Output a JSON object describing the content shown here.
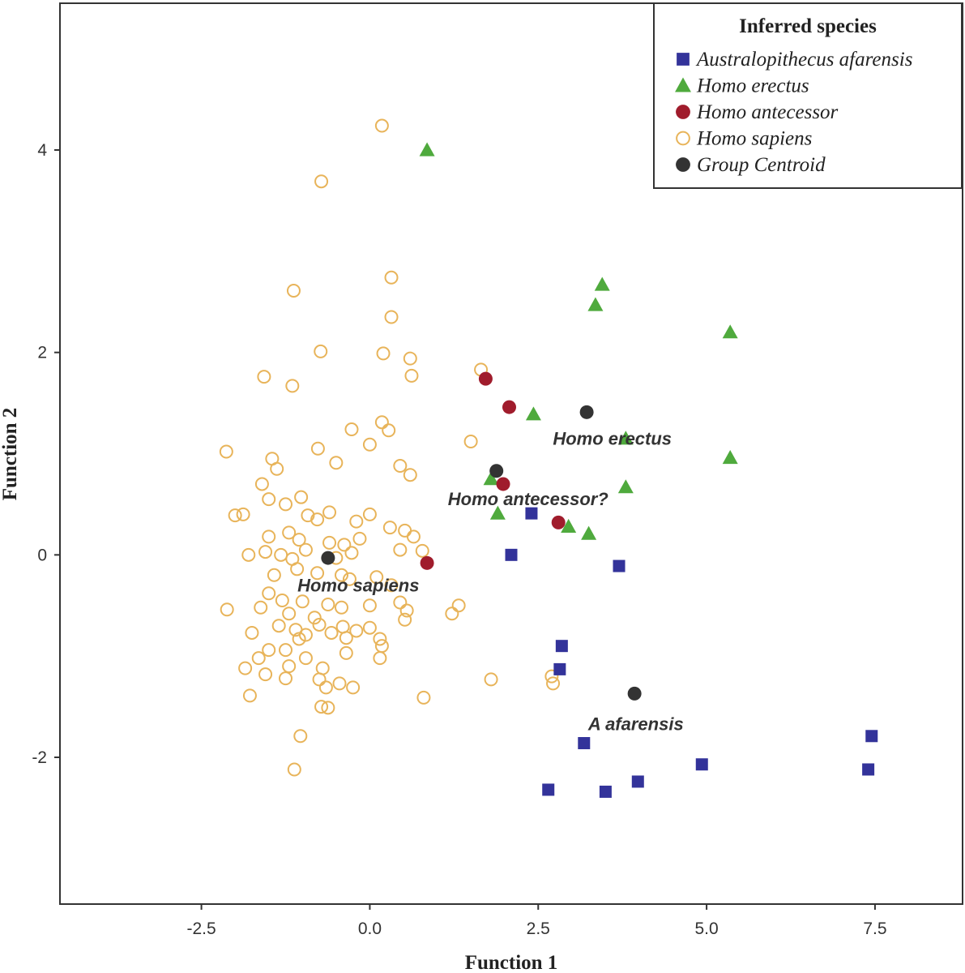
{
  "chart_data": {
    "type": "scatter",
    "title": "",
    "xlabel": "Function 1",
    "ylabel": "Function 2",
    "xlim": [
      -4.6,
      8.8
    ],
    "ylim": [
      -3.45,
      5.45
    ],
    "grid": false,
    "xticks": [
      -2.5,
      0.0,
      2.5,
      5.0,
      7.5
    ],
    "xtick_labels": [
      "-2.5",
      "0.0",
      "2.5",
      "5.0",
      "7.5"
    ],
    "yticks": [
      4,
      2,
      0,
      -2
    ],
    "ytick_labels": [
      "4",
      "2",
      "0",
      "-2"
    ],
    "legend": {
      "title": "Inferred species",
      "position": "top-right",
      "entries": [
        {
          "label": "Australopithecus afarensis",
          "marker": "square",
          "color": "#33339a"
        },
        {
          "label": "Homo erectus",
          "marker": "triangle",
          "color": "#4faa3d"
        },
        {
          "label": "Homo antecessor",
          "marker": "circle-filled",
          "color": "#a01c2c"
        },
        {
          "label": "Homo sapiens",
          "marker": "circle-open",
          "color": "#e8b45a"
        },
        {
          "label": "Group Centroid",
          "marker": "circle-filled",
          "color": "#333333"
        }
      ]
    },
    "series": [
      {
        "name": "Australopithecus afarensis",
        "marker": "square",
        "color": "#33339a",
        "points": [
          [
            2.4,
            0.41
          ],
          [
            2.1,
            0.0
          ],
          [
            3.7,
            -0.11
          ],
          [
            2.85,
            -0.9
          ],
          [
            2.82,
            -1.13
          ],
          [
            3.18,
            -1.86
          ],
          [
            2.65,
            -2.32
          ],
          [
            3.5,
            -2.34
          ],
          [
            3.98,
            -2.24
          ],
          [
            4.93,
            -2.07
          ],
          [
            7.45,
            -1.79
          ],
          [
            7.4,
            -2.12
          ]
        ]
      },
      {
        "name": "Homo erectus",
        "marker": "triangle",
        "color": "#4faa3d",
        "points": [
          [
            0.85,
            4.0
          ],
          [
            3.45,
            2.67
          ],
          [
            3.35,
            2.47
          ],
          [
            5.35,
            2.2
          ],
          [
            2.43,
            1.39
          ],
          [
            3.8,
            1.15
          ],
          [
            5.35,
            0.96
          ],
          [
            1.8,
            0.75
          ],
          [
            3.8,
            0.67
          ],
          [
            1.9,
            0.41
          ],
          [
            2.95,
            0.28
          ],
          [
            3.25,
            0.21
          ]
        ]
      },
      {
        "name": "Homo antecessor",
        "marker": "circle-filled",
        "color": "#a01c2c",
        "points": [
          [
            1.72,
            1.74
          ],
          [
            2.07,
            1.46
          ],
          [
            1.98,
            0.7
          ],
          [
            2.8,
            0.32
          ],
          [
            0.85,
            -0.08
          ]
        ]
      },
      {
        "name": "Homo sapiens",
        "marker": "circle-open",
        "color": "#e8b45a",
        "points": [
          [
            0.18,
            4.24
          ],
          [
            -0.72,
            3.69
          ],
          [
            0.32,
            2.74
          ],
          [
            -1.13,
            2.61
          ],
          [
            0.32,
            2.35
          ],
          [
            -0.73,
            2.01
          ],
          [
            0.2,
            1.99
          ],
          [
            0.6,
            1.94
          ],
          [
            0.62,
            1.77
          ],
          [
            -1.57,
            1.76
          ],
          [
            -1.15,
            1.67
          ],
          [
            1.65,
            1.83
          ],
          [
            0.18,
            1.31
          ],
          [
            0.28,
            1.23
          ],
          [
            -0.27,
            1.24
          ],
          [
            1.5,
            1.12
          ],
          [
            0.0,
            1.09
          ],
          [
            -2.13,
            1.02
          ],
          [
            -0.77,
            1.05
          ],
          [
            0.45,
            0.88
          ],
          [
            -0.5,
            0.91
          ],
          [
            -1.45,
            0.95
          ],
          [
            0.6,
            0.79
          ],
          [
            -1.38,
            0.85
          ],
          [
            -1.6,
            0.7
          ],
          [
            -1.02,
            0.57
          ],
          [
            -1.5,
            0.55
          ],
          [
            -1.25,
            0.5
          ],
          [
            -1.88,
            0.4
          ],
          [
            -2.0,
            0.39
          ],
          [
            -0.92,
            0.39
          ],
          [
            -0.78,
            0.35
          ],
          [
            -0.6,
            0.42
          ],
          [
            -0.2,
            0.33
          ],
          [
            0.0,
            0.4
          ],
          [
            0.3,
            0.27
          ],
          [
            0.52,
            0.24
          ],
          [
            0.65,
            0.18
          ],
          [
            -1.5,
            0.18
          ],
          [
            -1.2,
            0.22
          ],
          [
            -1.05,
            0.15
          ],
          [
            -0.6,
            0.12
          ],
          [
            -0.38,
            0.1
          ],
          [
            -0.15,
            0.16
          ],
          [
            0.45,
            0.05
          ],
          [
            0.78,
            0.04
          ],
          [
            -1.8,
            0.0
          ],
          [
            -1.55,
            0.03
          ],
          [
            -1.32,
            0.0
          ],
          [
            -1.15,
            -0.04
          ],
          [
            -0.95,
            0.05
          ],
          [
            -0.5,
            -0.03
          ],
          [
            -0.27,
            0.02
          ],
          [
            -1.42,
            -0.2
          ],
          [
            -1.08,
            -0.14
          ],
          [
            -0.78,
            -0.18
          ],
          [
            -0.42,
            -0.2
          ],
          [
            -0.3,
            -0.24
          ],
          [
            0.1,
            -0.22
          ],
          [
            0.32,
            -0.3
          ],
          [
            -1.5,
            -0.38
          ],
          [
            -1.3,
            -0.45
          ],
          [
            -1.0,
            -0.46
          ],
          [
            -0.62,
            -0.49
          ],
          [
            -0.42,
            -0.52
          ],
          [
            0.0,
            -0.5
          ],
          [
            0.45,
            -0.47
          ],
          [
            0.55,
            -0.55
          ],
          [
            -2.12,
            -0.54
          ],
          [
            -1.62,
            -0.52
          ],
          [
            -1.2,
            -0.58
          ],
          [
            -0.82,
            -0.62
          ],
          [
            1.32,
            -0.5
          ],
          [
            1.22,
            -0.58
          ],
          [
            0.52,
            -0.64
          ],
          [
            -1.35,
            -0.7
          ],
          [
            -1.1,
            -0.74
          ],
          [
            -0.95,
            -0.79
          ],
          [
            -0.75,
            -0.69
          ],
          [
            -0.4,
            -0.71
          ],
          [
            -0.2,
            -0.75
          ],
          [
            0.0,
            -0.72
          ],
          [
            0.15,
            -0.83
          ],
          [
            -1.75,
            -0.77
          ],
          [
            -1.05,
            -0.83
          ],
          [
            -0.57,
            -0.77
          ],
          [
            -0.35,
            -0.82
          ],
          [
            -1.5,
            -0.94
          ],
          [
            -1.25,
            -0.94
          ],
          [
            -1.65,
            -1.02
          ],
          [
            -0.95,
            -1.02
          ],
          [
            -0.35,
            -0.97
          ],
          [
            0.18,
            -0.9
          ],
          [
            0.15,
            -1.02
          ],
          [
            -1.85,
            -1.12
          ],
          [
            -1.2,
            -1.1
          ],
          [
            -0.7,
            -1.12
          ],
          [
            -1.55,
            -1.18
          ],
          [
            -1.25,
            -1.22
          ],
          [
            -0.75,
            -1.23
          ],
          [
            -0.45,
            -1.27
          ],
          [
            -0.25,
            -1.31
          ],
          [
            -0.65,
            -1.31
          ],
          [
            2.7,
            -1.2
          ],
          [
            2.72,
            -1.27
          ],
          [
            1.8,
            -1.23
          ],
          [
            0.8,
            -1.41
          ],
          [
            -1.78,
            -1.39
          ],
          [
            -0.72,
            -1.5
          ],
          [
            -0.62,
            -1.51
          ],
          [
            -1.03,
            -1.79
          ],
          [
            -1.12,
            -2.12
          ]
        ]
      },
      {
        "name": "Group Centroid",
        "marker": "circle-filled",
        "color": "#333333",
        "points": [
          [
            -0.62,
            -0.03
          ],
          [
            1.88,
            0.83
          ],
          [
            3.22,
            1.41
          ],
          [
            3.93,
            -1.37
          ]
        ]
      }
    ],
    "annotations": [
      {
        "text": "Homo erectus",
        "x": 3.6,
        "y": 1.09
      },
      {
        "text": "Homo antecessor?",
        "x": 2.35,
        "y": 0.49
      },
      {
        "text": "Homo sapiens",
        "x": -0.17,
        "y": -0.36
      },
      {
        "text": "A afarensis",
        "x": 3.95,
        "y": -1.73
      }
    ]
  }
}
